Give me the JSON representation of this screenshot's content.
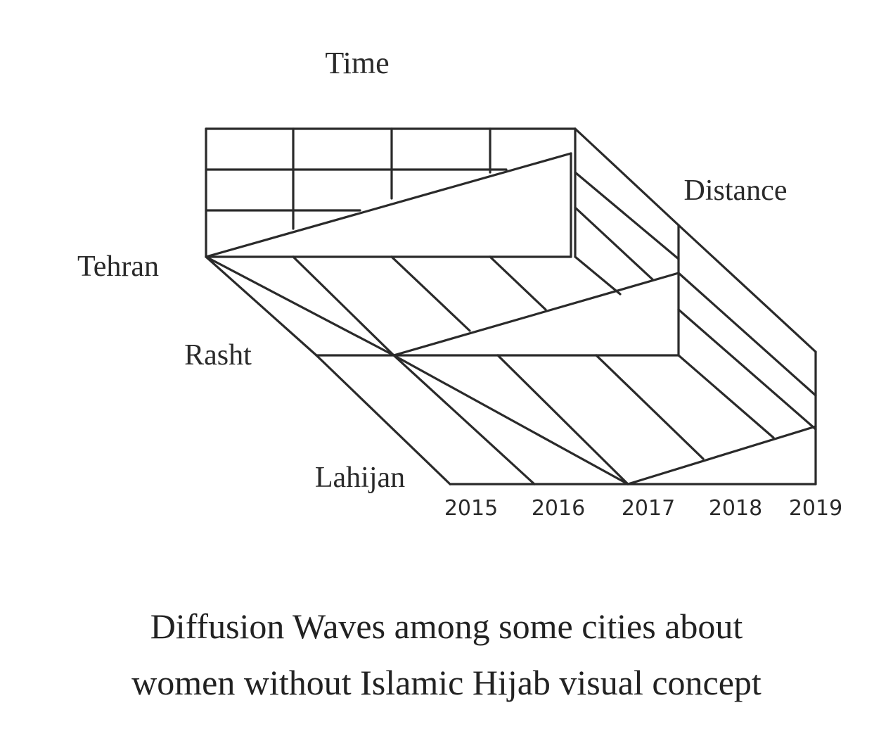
{
  "axes": {
    "time_label": "Time",
    "distance_label": "Distance"
  },
  "cities": [
    "Tehran",
    "Rasht",
    "Lahijan"
  ],
  "years": [
    "2015",
    "2016",
    "2017",
    "2018",
    "2019"
  ],
  "caption": {
    "line1": "Diffusion Waves among some cities about",
    "line2": "women without Islamic Hijab visual concept"
  }
}
